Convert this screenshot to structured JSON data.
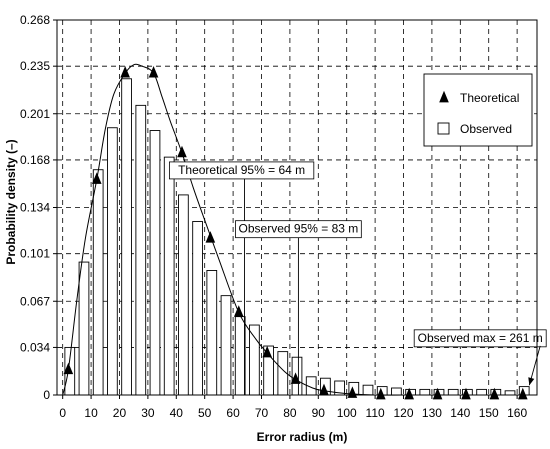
{
  "chart_data": {
    "type": "bar",
    "xlabel": "Error radius (m)",
    "ylabel": "Probability density (–)",
    "xlim": [
      -2,
      167
    ],
    "ylim": [
      0,
      0.268
    ],
    "x_ticks": [
      0,
      10,
      20,
      30,
      40,
      50,
      60,
      70,
      80,
      90,
      100,
      110,
      120,
      130,
      140,
      150,
      160
    ],
    "y_ticks": [
      0,
      0.034,
      0.067,
      0.101,
      0.134,
      0.168,
      0.201,
      0.235,
      0.268
    ],
    "y_tick_labels": [
      "0",
      "0.034",
      "0.067",
      "0.101",
      "0.134",
      "0.168",
      "0.201",
      "0.235",
      "0.268"
    ],
    "grid": true,
    "grid_style": "dashed",
    "legend_position": "top-right",
    "series": [
      {
        "name": "Observed",
        "type": "bar",
        "bin_width": 5,
        "x": [
          2.5,
          7.5,
          12.5,
          17.5,
          22.5,
          27.5,
          32.5,
          37.5,
          42.5,
          47.5,
          52.5,
          57.5,
          62.5,
          67.5,
          72.5,
          77.5,
          82.5,
          87.5,
          92.5,
          97.5,
          102.5,
          107.5,
          112.5,
          117.5,
          122.5,
          127.5,
          132.5,
          137.5,
          142.5,
          147.5,
          152.5,
          157.5,
          162.5
        ],
        "values": [
          0.034,
          0.095,
          0.161,
          0.191,
          0.226,
          0.207,
          0.189,
          0.17,
          0.143,
          0.124,
          0.089,
          0.071,
          0.056,
          0.05,
          0.035,
          0.031,
          0.027,
          0.013,
          0.012,
          0.01,
          0.009,
          0.007,
          0.006,
          0.005,
          0.004,
          0.004,
          0.004,
          0.004,
          0.004,
          0.004,
          0.004,
          0.003,
          0.006
        ],
        "color": "#ffffff",
        "edge_color": "#000000"
      },
      {
        "name": "Theoretical",
        "type": "line",
        "marker": "triangle",
        "x": [
          2,
          12,
          22,
          32,
          42,
          52,
          62,
          72,
          82,
          92,
          102,
          112,
          122,
          132,
          142,
          152,
          162
        ],
        "values": [
          0.018,
          0.154,
          0.23,
          0.23,
          0.173,
          0.112,
          0.059,
          0.03,
          0.011,
          0.003,
          0.001,
          0.0,
          0.0,
          0.0,
          0.0,
          0.0,
          0.0
        ],
        "curve_x": [
          0,
          2,
          5,
          8,
          12,
          15,
          18,
          22,
          25,
          28,
          32,
          35,
          38,
          42,
          46,
          50,
          55,
          62,
          68,
          72,
          78,
          82,
          88,
          92,
          100,
          110,
          130,
          165
        ],
        "curve_values": [
          0.0,
          0.018,
          0.068,
          0.112,
          0.154,
          0.19,
          0.215,
          0.23,
          0.236,
          0.235,
          0.23,
          0.213,
          0.195,
          0.173,
          0.148,
          0.125,
          0.097,
          0.059,
          0.04,
          0.03,
          0.017,
          0.011,
          0.005,
          0.003,
          0.001,
          0.0,
          0.0,
          0.0
        ],
        "color": "#000000"
      }
    ],
    "annotations": [
      {
        "text": "Theoretical 95% = 64 m",
        "x": 64,
        "label_x": 63,
        "label_y": 0.158
      },
      {
        "text": "Observed 95% = 83 m",
        "x": 83,
        "label_x": 83,
        "label_y": 0.116
      },
      {
        "text": "Observed max = 261 m",
        "x": 165,
        "label_x": 147,
        "label_y": 0.038
      }
    ]
  }
}
